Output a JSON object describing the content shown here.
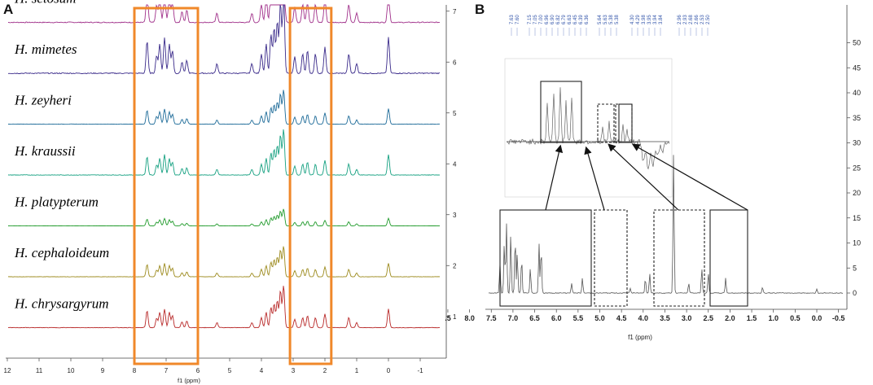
{
  "chart_data": [
    {
      "type": "line",
      "panel": "A",
      "title": "",
      "xlabel": "f1 (ppm)",
      "ylabel": "",
      "xlim": [
        12.5,
        -1.8
      ],
      "x_ticks": [
        "12",
        "11",
        "10",
        "9",
        "8",
        "7",
        "6",
        "5",
        "4",
        "3",
        "2",
        "1",
        "0",
        "-1"
      ],
      "y_ticks": [
        "1",
        "2",
        "3",
        "4",
        "5",
        "6",
        "7"
      ],
      "series": [
        {
          "name": "H. setosum",
          "color": "#a0308a",
          "offset": 6.6
        },
        {
          "name": "H. mimetes",
          "color": "#3a2a8a",
          "offset": 5.6
        },
        {
          "name": "H. zeyheri",
          "color": "#1c6a98",
          "offset": 4.6
        },
        {
          "name": "H. kraussii",
          "color": "#14a080",
          "offset": 3.6
        },
        {
          "name": "H. platypterum",
          "color": "#1f9a2a",
          "offset": 2.6
        },
        {
          "name": "H. cephaloideum",
          "color": "#9c8a1c",
          "offset": 1.6
        },
        {
          "name": "H. chrysargyrum",
          "color": "#b82828",
          "offset": 0.6
        }
      ],
      "highlight_regions_ppm": [
        [
          8.0,
          6.0
        ],
        [
          3.1,
          1.8
        ]
      ],
      "highlight_color": "#f0882a"
    },
    {
      "type": "line",
      "panel": "B",
      "title": "",
      "xlabel": "f1 (ppm)",
      "ylabel": "",
      "xlim": [
        8.5,
        -0.5
      ],
      "ylim": [
        -3,
        52
      ],
      "x_ticks": [
        ".5",
        "8.0",
        "7.5",
        "7.0",
        "6.5",
        "6.0",
        "5.5",
        "5.0",
        "4.5",
        "4.0",
        "3.5",
        "3.0",
        "2.5",
        "2.0",
        "1.5",
        "1.0",
        "0.5",
        "0.0",
        "-0.5"
      ],
      "y_ticks": [
        "0",
        "5",
        "10",
        "15",
        "20",
        "25",
        "30",
        "35",
        "40",
        "45",
        "50"
      ],
      "peak_labels": [
        "7.63",
        "7.60",
        "7.15",
        "7.05",
        "7.00",
        "6.96",
        "6.90",
        "6.82",
        "6.79",
        "6.63",
        "6.45",
        "6.39",
        "6.36",
        "5.64",
        "5.63",
        "5.38",
        "5.38",
        "4.30",
        "4.29",
        "3.98",
        "3.95",
        "3.94",
        "3.84",
        "2.96",
        "2.93",
        "2.68",
        "2.66",
        "2.53",
        "2.50"
      ],
      "zoom_boxes_ppm": [
        [
          8.3,
          6.0
        ],
        [
          5.9,
          5.1
        ],
        [
          4.45,
          3.25
        ],
        [
          3.05,
          2.15
        ]
      ],
      "inset_boxes": 4
    }
  ]
}
